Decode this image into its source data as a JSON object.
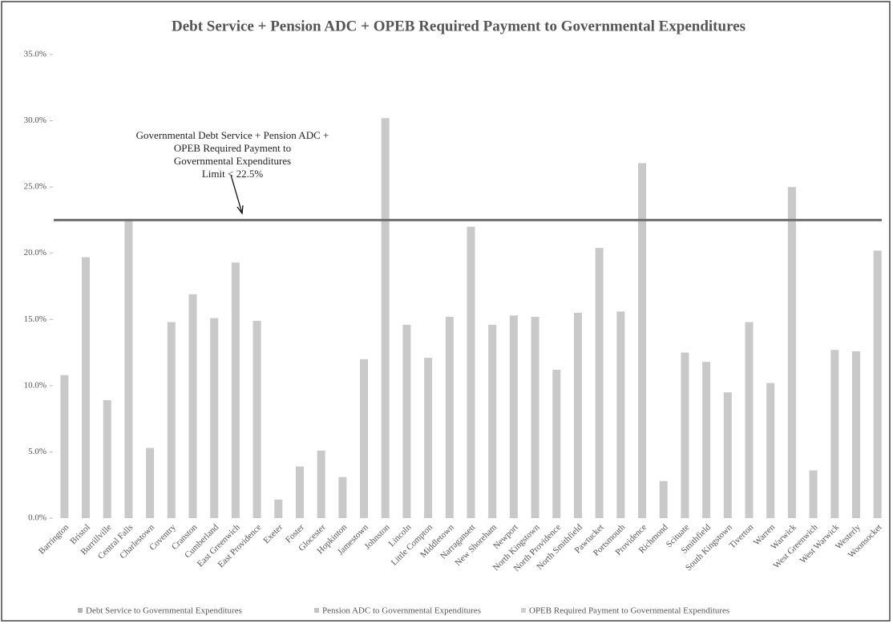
{
  "chart_data": {
    "type": "bar",
    "title": "Debt Service + Pension ADC + OPEB Required Payment to Governmental Expenditures",
    "categories": [
      "Barrington",
      "Bristol",
      "Burrillville",
      "Central Falls",
      "Charlestown",
      "Coventry",
      "Cranston",
      "Cumberland",
      "East Greenwich",
      "East Providence",
      "Exeter",
      "Foster",
      "Glocester",
      "Hopkinton",
      "Jamestown",
      "Johnston",
      "Lincoln",
      "Little Compton",
      "Middletown",
      "Narragansett",
      "New Shoreham",
      "Newport",
      "North Kingstown",
      "North Providence",
      "North Smithfield",
      "Pawtucket",
      "Portsmouth",
      "Providence",
      "Richmond",
      "Scituate",
      "Smithfield",
      "South Kingstown",
      "Tiverton",
      "Warren",
      "Warwick",
      "West Greenwich",
      "West Warwick",
      "Westerly",
      "Woonsocket"
    ],
    "values": [
      10.8,
      19.7,
      8.9,
      22.6,
      5.3,
      14.8,
      16.9,
      15.1,
      19.3,
      14.9,
      1.4,
      3.9,
      5.1,
      3.1,
      12.0,
      30.2,
      14.6,
      12.1,
      15.2,
      22.0,
      14.6,
      15.3,
      15.2,
      11.2,
      15.5,
      20.4,
      15.6,
      26.8,
      2.8,
      12.5,
      11.8,
      9.5,
      14.8,
      10.2,
      25.0,
      3.6,
      12.7,
      12.6,
      20.2
    ],
    "color": "#c9c9c9",
    "ylim": [
      0,
      35
    ],
    "yticks": [
      {
        "value": 0,
        "label": "0.0%"
      },
      {
        "value": 5,
        "label": "5.0%"
      },
      {
        "value": 10,
        "label": "10.0%"
      },
      {
        "value": 15,
        "label": "15.0%"
      },
      {
        "value": 20,
        "label": "20.0%"
      },
      {
        "value": 25,
        "label": "25.0%"
      },
      {
        "value": 30,
        "label": "30.0%"
      },
      {
        "value": 35,
        "label": "35.0%"
      }
    ],
    "limit_line": 22.5,
    "limit_color": "#6e6e6e",
    "annotation": [
      "Governmental Debt Service + Pension ADC +",
      "OPEB Required Payment to",
      "Governmental Expenditures",
      "Limit  < 22.5%"
    ],
    "legend": [
      {
        "name": "Debt Service to Governmental Expenditures",
        "color": "#b5b5b5"
      },
      {
        "name": "Pension ADC to Governmental Expenditures",
        "color": "#c2c2c2"
      },
      {
        "name": "OPEB Required Payment to Governmental Expenditures",
        "color": "#cfcfcf"
      }
    ]
  }
}
